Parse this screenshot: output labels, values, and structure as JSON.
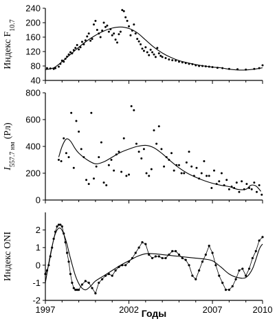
{
  "chart_data": [
    {
      "type": "scatter",
      "ylabel_main": "Индекс F",
      "ylabel_sub": "10.7",
      "xlim": [
        1997,
        2010
      ],
      "ylim": [
        40,
        240
      ],
      "yticks": [
        40,
        80,
        120,
        160,
        200,
        240
      ],
      "xticks": [
        1997,
        2002,
        2007,
        2010
      ],
      "series": [
        {
          "kind": "points",
          "x": [
            1997.1,
            1997.3,
            1997.5,
            1997.6,
            1997.8,
            1997.9,
            1998.0,
            1998.1,
            1998.2,
            1998.3,
            1998.4,
            1998.5,
            1998.6,
            1998.7,
            1998.8,
            1998.9,
            1999.0,
            1999.1,
            1999.2,
            1999.3,
            1999.4,
            1999.5,
            1999.6,
            1999.7,
            1999.8,
            1999.9,
            2000.0,
            2000.1,
            2000.2,
            2000.3,
            2000.4,
            2000.5,
            2000.6,
            2000.7,
            2000.8,
            2000.9,
            2001.0,
            2001.1,
            2001.2,
            2001.3,
            2001.4,
            2001.5,
            2001.6,
            2001.7,
            2001.8,
            2001.9,
            2002.0,
            2002.1,
            2002.2,
            2002.3,
            2002.4,
            2002.5,
            2002.6,
            2002.7,
            2002.8,
            2002.9,
            2003.0,
            2003.1,
            2003.2,
            2003.3,
            2003.4,
            2003.5,
            2003.6,
            2003.7,
            2003.8,
            2003.9,
            2004.0,
            2004.2,
            2004.4,
            2004.6,
            2004.8,
            2005.0,
            2005.2,
            2005.4,
            2005.6,
            2005.8,
            2006.0,
            2006.2,
            2006.4,
            2006.6,
            2006.8,
            2007.0,
            2007.3,
            2007.6,
            2008.0,
            2008.5,
            2009.0,
            2009.5,
            2009.8,
            2010.0
          ],
          "values": [
            74,
            73,
            72,
            74,
            78,
            86,
            95,
            92,
            100,
            106,
            112,
            118,
            115,
            124,
            130,
            138,
            126,
            132,
            147,
            140,
            151,
            162,
            170,
            150,
            155,
            195,
            205,
            180,
            170,
            160,
            178,
            200,
            188,
            192,
            175,
            182,
            165,
            170,
            153,
            145,
            168,
            175,
            235,
            232,
            215,
            205,
            190,
            165,
            178,
            195,
            170,
            155,
            148,
            140,
            128,
            122,
            132,
            118,
            110,
            125,
            118,
            112,
            105,
            130,
            115,
            108,
            105,
            102,
            98,
            96,
            95,
            92,
            90,
            88,
            86,
            85,
            82,
            80,
            80,
            79,
            78,
            77,
            75,
            74,
            72,
            71,
            70,
            72,
            74,
            82
          ]
        },
        {
          "kind": "smooth",
          "x": [
            1997.0,
            1997.5,
            1998.0,
            1998.5,
            1999.0,
            1999.5,
            2000.0,
            2000.5,
            2001.0,
            2001.5,
            2002.0,
            2002.5,
            2003.0,
            2003.5,
            2004.0,
            2004.5,
            2005.0,
            2005.5,
            2006.0,
            2006.5,
            2007.0,
            2007.5,
            2008.0,
            2008.5,
            2009.0,
            2009.5,
            2010.0
          ],
          "values": [
            70,
            75,
            92,
            112,
            132,
            150,
            165,
            177,
            185,
            188,
            184,
            172,
            152,
            132,
            116,
            104,
            95,
            89,
            84,
            80,
            77,
            75,
            71,
            69,
            69,
            71,
            75
          ]
        }
      ]
    },
    {
      "type": "scatter",
      "ylabel_main": "I",
      "ylabel_sub": "557.7 нм",
      "ylabel_unit": "(Рл)",
      "xlim": [
        1997,
        2010
      ],
      "ylim": [
        0,
        800
      ],
      "yticks": [
        0,
        200,
        400,
        600,
        800
      ],
      "xticks": [
        1997,
        2002,
        2007,
        2010
      ],
      "series": [
        {
          "kind": "points",
          "x": [
            1997.8,
            1997.95,
            1998.1,
            1998.25,
            1998.4,
            1998.55,
            1998.7,
            1998.85,
            1999.0,
            1999.15,
            1999.3,
            1999.45,
            1999.6,
            1999.75,
            1999.9,
            2000.05,
            2000.2,
            2000.35,
            2000.5,
            2000.65,
            2000.8,
            2000.95,
            2001.1,
            2001.25,
            2001.4,
            2001.55,
            2001.7,
            2001.85,
            2002.0,
            2002.15,
            2002.3,
            2002.45,
            2002.6,
            2002.75,
            2002.9,
            2003.05,
            2003.2,
            2003.35,
            2003.5,
            2003.65,
            2003.8,
            2003.95,
            2004.1,
            2004.25,
            2004.4,
            2004.55,
            2004.7,
            2004.85,
            2005.0,
            2005.15,
            2005.3,
            2005.45,
            2005.6,
            2005.75,
            2005.9,
            2006.05,
            2006.2,
            2006.35,
            2006.5,
            2006.65,
            2006.8,
            2006.95,
            2007.1,
            2007.25,
            2007.4,
            2007.55,
            2007.7,
            2007.85,
            2008.0,
            2008.15,
            2008.3,
            2008.45,
            2008.6,
            2008.75,
            2008.9,
            2009.05,
            2009.2,
            2009.35,
            2009.5,
            2009.65,
            2009.8,
            2009.95
          ],
          "values": [
            300,
            290,
            460,
            350,
            320,
            650,
            240,
            590,
            510,
            380,
            320,
            150,
            120,
            650,
            160,
            250,
            320,
            430,
            130,
            110,
            260,
            300,
            220,
            340,
            360,
            210,
            460,
            180,
            190,
            700,
            670,
            420,
            360,
            310,
            380,
            200,
            180,
            230,
            520,
            420,
            550,
            380,
            250,
            320,
            300,
            350,
            220,
            260,
            260,
            200,
            200,
            280,
            360,
            250,
            180,
            240,
            160,
            200,
            290,
            180,
            180,
            90,
            220,
            120,
            140,
            200,
            110,
            150,
            80,
            100,
            90,
            130,
            60,
            140,
            80,
            120,
            90,
            80,
            130,
            60,
            110,
            40
          ]
        },
        {
          "kind": "smooth",
          "x": [
            1997.8,
            1998.0,
            1998.25,
            1998.5,
            1998.75,
            1999.0,
            1999.5,
            2000.0,
            2000.5,
            2001.0,
            2001.5,
            2002.0,
            2002.5,
            2003.0,
            2003.5,
            2004.0,
            2004.5,
            2005.0,
            2005.5,
            2006.0,
            2006.5,
            2007.0,
            2007.5,
            2008.0,
            2008.5,
            2009.0,
            2009.3,
            2009.6,
            2009.9
          ],
          "values": [
            320,
            400,
            455,
            440,
            390,
            350,
            300,
            270,
            285,
            320,
            355,
            380,
            400,
            408,
            390,
            345,
            290,
            240,
            200,
            170,
            145,
            125,
            110,
            100,
            80,
            80,
            110,
            105,
            65
          ]
        }
      ]
    },
    {
      "type": "line",
      "ylabel_main": "Индекс ONI",
      "xlim": [
        1997,
        2010
      ],
      "ylim": [
        -2,
        3
      ],
      "yticks": [
        -2,
        -1,
        0,
        1,
        2
      ],
      "xticks": [
        1997,
        2002,
        2007,
        2010
      ],
      "xlabel": "Годы",
      "series": [
        {
          "kind": "points-connected",
          "x": [
            1997.0,
            1997.1,
            1997.2,
            1997.3,
            1997.4,
            1997.5,
            1997.6,
            1997.7,
            1997.8,
            1997.9,
            1998.0,
            1998.1,
            1998.2,
            1998.3,
            1998.4,
            1998.5,
            1998.6,
            1998.7,
            1998.8,
            1998.9,
            1999.0,
            1999.2,
            1999.4,
            1999.6,
            1999.8,
            2000.0,
            2000.2,
            2000.4,
            2000.6,
            2000.8,
            2001.0,
            2001.2,
            2001.4,
            2001.6,
            2001.8,
            2002.0,
            2002.2,
            2002.4,
            2002.6,
            2002.8,
            2003.0,
            2003.2,
            2003.4,
            2003.6,
            2003.8,
            2004.0,
            2004.2,
            2004.4,
            2004.6,
            2004.8,
            2005.0,
            2005.2,
            2005.4,
            2005.6,
            2005.8,
            2006.0,
            2006.2,
            2006.4,
            2006.6,
            2006.8,
            2007.0,
            2007.2,
            2007.4,
            2007.6,
            2007.8,
            2008.0,
            2008.2,
            2008.4,
            2008.6,
            2008.8,
            2009.0,
            2009.2,
            2009.4,
            2009.6,
            2009.8,
            2010.0
          ],
          "values": [
            -0.5,
            -0.3,
            0.0,
            0.5,
            1.0,
            1.5,
            1.9,
            2.2,
            2.3,
            2.3,
            2.2,
            1.8,
            1.3,
            0.7,
            0.2,
            -0.5,
            -1.0,
            -1.3,
            -1.4,
            -1.4,
            -1.4,
            -1.1,
            -0.9,
            -1.0,
            -1.3,
            -1.6,
            -1.0,
            -0.8,
            -0.6,
            -0.5,
            -0.6,
            -0.3,
            -0.1,
            0.0,
            0.0,
            0.2,
            0.4,
            0.7,
            1.0,
            1.3,
            1.2,
            0.6,
            0.4,
            0.5,
            0.5,
            0.4,
            0.4,
            0.6,
            0.8,
            0.8,
            0.6,
            0.4,
            0.3,
            0.0,
            -0.6,
            -0.8,
            -0.3,
            0.2,
            0.6,
            1.1,
            0.7,
            0.0,
            -0.6,
            -1.0,
            -1.4,
            -1.4,
            -1.2,
            -0.8,
            -0.3,
            -0.2,
            -0.6,
            -0.2,
            0.4,
            0.8,
            1.4,
            1.6
          ]
        },
        {
          "kind": "smooth",
          "x": [
            1997.0,
            1997.3,
            1997.6,
            1997.9,
            1998.2,
            1998.5,
            1998.8,
            1999.1,
            1999.4,
            1999.7,
            2000.0,
            2000.5,
            2001.0,
            2001.5,
            2002.0,
            2002.5,
            2003.0,
            2003.5,
            2004.0,
            2004.5,
            2005.0,
            2005.5,
            2006.0,
            2006.5,
            2007.0,
            2007.5,
            2008.0,
            2008.5,
            2009.0,
            2009.4,
            2009.8,
            2010.0
          ],
          "values": [
            -1.0,
            0.6,
            1.8,
            2.1,
            1.5,
            0.4,
            -0.6,
            -1.2,
            -1.4,
            -1.2,
            -0.9,
            -0.6,
            -0.3,
            0.0,
            0.25,
            0.5,
            0.65,
            0.65,
            0.6,
            0.55,
            0.5,
            0.45,
            0.4,
            0.35,
            0.25,
            -0.1,
            -0.5,
            -0.7,
            -0.7,
            -0.2,
            0.9,
            1.2
          ]
        }
      ]
    }
  ]
}
